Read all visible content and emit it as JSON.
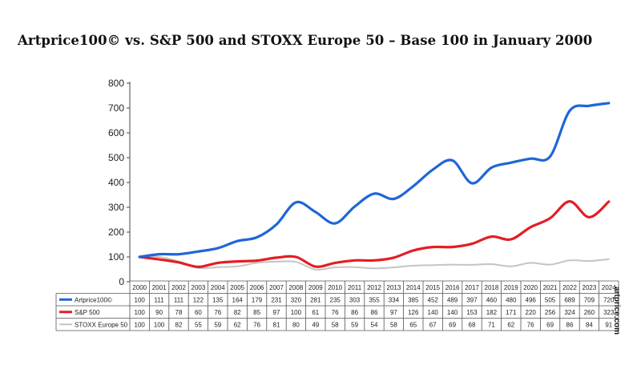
{
  "watermark": "artprice.com",
  "chart_data": {
    "type": "line",
    "title": "Artprice100© vs. S&P 500 and STOXX Europe 50 – Base 100 in January 2000",
    "xlabel": "",
    "ylabel": "",
    "ylim": [
      0,
      800
    ],
    "yticks": [
      0,
      100,
      200,
      300,
      400,
      500,
      600,
      700,
      800
    ],
    "grid": false,
    "legend": "table-below",
    "categories": [
      "2000",
      "2001",
      "2002",
      "2003",
      "2004",
      "2005",
      "2006",
      "2007",
      "2008",
      "2009",
      "2010",
      "2011",
      "2012",
      "2013",
      "2014",
      "2015",
      "2016",
      "2017",
      "2018",
      "2019",
      "2020",
      "2021",
      "2022",
      "2023",
      "2024"
    ],
    "series": [
      {
        "name": "Artprice100©",
        "color": "#1f66d6",
        "values": [
          100,
          111,
          111,
          122,
          135,
          164,
          179,
          231,
          320,
          281,
          235,
          303,
          355,
          334,
          385,
          452,
          489,
          397,
          460,
          480,
          496,
          505,
          689,
          709,
          720
        ]
      },
      {
        "name": "S&P 500",
        "color": "#e31e24",
        "values": [
          100,
          90,
          78,
          60,
          76,
          82,
          85,
          97,
          100,
          61,
          76,
          86,
          86,
          97,
          126,
          140,
          140,
          153,
          182,
          171,
          220,
          256,
          324,
          260,
          323
        ]
      },
      {
        "name": "STOXX Europe 50",
        "color": "#c4c4c4",
        "values": [
          100,
          100,
          82,
          55,
          59,
          62,
          76,
          81,
          80,
          49,
          58,
          59,
          54,
          58,
          65,
          67,
          69,
          68,
          71,
          62,
          76,
          69,
          86,
          84,
          91
        ]
      }
    ]
  }
}
